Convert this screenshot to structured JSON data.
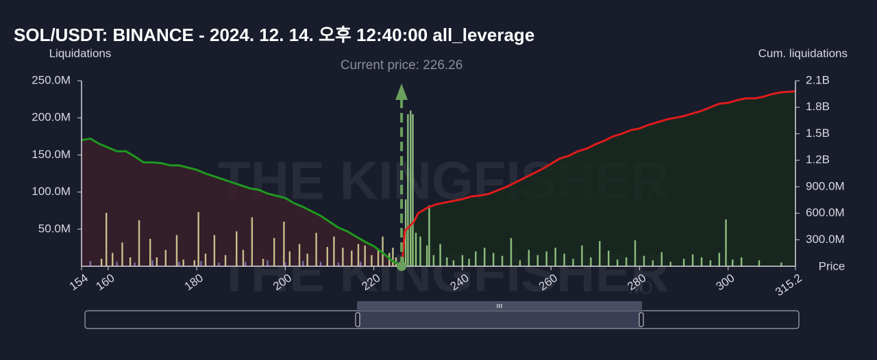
{
  "chart_data": {
    "type": "liquidation-map",
    "title": "SOL/USDT: BINANCE - 2024. 12. 14. 오후 12:40:00 all_leverage",
    "ylabel": "Liquidations",
    "y2label": "Cum. liquidations",
    "xlabel": "Price",
    "annotation": {
      "text": "Current price: 226.26",
      "x": 226.26,
      "color": "#6a9f5c"
    },
    "watermark": {
      "name": "THE KINGFISHER",
      "suffix": ".io"
    },
    "xlim": [
      154,
      315.2
    ],
    "xticks": [
      154,
      160,
      180,
      200,
      220,
      240,
      260,
      280,
      300,
      315.2
    ],
    "ylim": [
      0,
      250000000
    ],
    "yticks": [
      {
        "value": 50000000,
        "label": "50.0M"
      },
      {
        "value": 100000000,
        "label": "100.0M"
      },
      {
        "value": 150000000,
        "label": "150.0M"
      },
      {
        "value": 200000000,
        "label": "200.0M"
      },
      {
        "value": 250000000,
        "label": "250.0M"
      }
    ],
    "y2lim": [
      0,
      2100000000
    ],
    "y2ticks": [
      {
        "value": 300000000,
        "label": "300.0M"
      },
      {
        "value": 600000000,
        "label": "600.0M"
      },
      {
        "value": 900000000,
        "label": "900.0M"
      },
      {
        "value": 1200000000,
        "label": "1.2B"
      },
      {
        "value": 1500000000,
        "label": "1.5B"
      },
      {
        "value": 1800000000,
        "label": "1.8B"
      },
      {
        "value": 2100000000,
        "label": "2.1B"
      }
    ],
    "series": [
      {
        "type": "bar",
        "color": "#e3dc9c",
        "x": [
          158.5,
          159.6,
          161,
          163.2,
          165,
          167,
          169.5,
          171,
          173,
          175.5,
          177,
          179.5,
          180.4,
          182,
          184,
          186.5,
          189,
          190.5,
          192.5,
          195,
          197.5,
          199.7,
          201,
          203.2,
          205,
          207,
          209.5,
          211,
          213,
          215,
          216.5,
          218,
          219.5,
          221,
          222,
          223.5,
          224.3,
          225
        ],
        "values": [
          10000000.0,
          72000000.0,
          18000000.0,
          32000000.0,
          12000000.0,
          62000000.0,
          37000000.0,
          12000000.0,
          22000000.0,
          42000000.0,
          9000000.0,
          8000000.0,
          73000000.0,
          17000000.0,
          42000000.0,
          15000000.0,
          47000000.0,
          22000000.0,
          66000000.0,
          10000000.0,
          38000000.0,
          60000000.0,
          20000000.0,
          30000000.0,
          17000000.0,
          45000000.0,
          26000000.0,
          40000000.0,
          25000000.0,
          21000000.0,
          30000000.0,
          28000000.0,
          15000000.0,
          23000000.0,
          40000000.0,
          18000000.0,
          25000000.0,
          12000000.0
        ]
      },
      {
        "type": "bar",
        "color": "#7f82c8",
        "x": [
          156,
          162,
          166,
          170,
          176,
          181,
          185,
          191,
          196,
          200,
          204,
          208,
          212,
          217
        ],
        "values": [
          7000000.0,
          6000000.0,
          5000000.0,
          8000000.0,
          6000000.0,
          7000000.0,
          5000000.0,
          6000000.0,
          8000000.0,
          5000000.0,
          7000000.0,
          6000000.0,
          5000000.0,
          6000000.0
        ]
      },
      {
        "type": "bar",
        "color": "#a3d98c",
        "x": [
          226.6,
          227.2,
          227.7,
          228.3,
          228.8,
          229.5,
          230.5,
          232,
          232.5,
          233.5,
          235,
          236.5,
          238,
          240,
          241.5,
          243,
          245,
          247,
          249,
          251,
          253,
          255,
          257,
          259,
          261,
          263,
          265,
          267,
          269,
          271,
          273,
          275,
          277,
          279,
          281,
          283,
          285,
          287,
          290,
          292,
          294,
          296,
          298,
          299.5,
          301,
          303,
          307,
          312
        ],
        "values": [
          30000000.0,
          90000000.0,
          205000000.0,
          210000000.0,
          205000000.0,
          45000000.0,
          40000000.0,
          28000000.0,
          82000000.0,
          15000000.0,
          30000000.0,
          12000000.0,
          8000000.0,
          15000000.0,
          10000000.0,
          20000000.0,
          25000000.0,
          18000000.0,
          14000000.0,
          38000000.0,
          8000000.0,
          22000000.0,
          15000000.0,
          20000000.0,
          25000000.0,
          17000000.0,
          10000000.0,
          28000000.0,
          12000000.0,
          34000000.0,
          21000000.0,
          9000000.0,
          12000000.0,
          35000000.0,
          14000000.0,
          8000000.0,
          19000000.0,
          6000000.0,
          10000000.0,
          16000000.0,
          12000000.0,
          8000000.0,
          18000000.0,
          63000000.0,
          9000000.0,
          12000000.0,
          8000000.0,
          5000000.0
        ]
      },
      {
        "type": "line",
        "color": "#1f9a1f",
        "area_color": "#3a1f2a",
        "x": [
          154,
          156,
          158,
          160,
          162,
          164,
          166,
          168,
          170,
          172,
          174,
          176,
          178,
          180,
          182,
          184,
          186,
          188,
          190,
          192,
          194,
          196,
          198,
          200,
          202,
          204,
          206,
          208,
          210,
          212,
          214,
          216,
          218,
          220,
          222,
          224,
          226.26
        ],
        "values": [
          170000000.0,
          172000000.0,
          165000000.0,
          160000000.0,
          155000000.0,
          155000000.0,
          148000000.0,
          140000000.0,
          140000000.0,
          139000000.0,
          136000000.0,
          136000000.0,
          133000000.0,
          130000000.0,
          125000000.0,
          121000000.0,
          117000000.0,
          113000000.0,
          109000000.0,
          105000000.0,
          103000000.0,
          98000000.0,
          95000000.0,
          92000000.0,
          85000000.0,
          80000000.0,
          74000000.0,
          68000000.0,
          60000000.0,
          52000000.0,
          47000000.0,
          40000000.0,
          33000000.0,
          27000000.0,
          18000000.0,
          8000000.0,
          0
        ]
      },
      {
        "type": "line",
        "axis": "y2",
        "color": "#e01b1b",
        "area_color": "#17291f",
        "x": [
          226.5,
          227,
          228,
          229,
          230,
          232,
          234,
          236,
          238,
          240,
          242,
          244,
          246,
          248,
          250,
          252,
          254,
          256,
          258,
          260,
          262,
          264,
          266,
          268,
          270,
          272,
          274,
          276,
          278,
          280,
          282,
          284,
          286,
          288,
          290,
          292,
          294,
          296,
          298,
          300,
          302,
          304,
          306,
          308,
          310,
          312,
          315.2
        ],
        "values": [
          100000000.0,
          400000000.0,
          450000000.0,
          500000000.0,
          600000000.0,
          660000000.0,
          700000000.0,
          720000000.0,
          740000000.0,
          760000000.0,
          790000000.0,
          800000000.0,
          820000000.0,
          860000000.0,
          900000000.0,
          950000000.0,
          1000000000.0,
          1050000000.0,
          1100000000.0,
          1160000000.0,
          1220000000.0,
          1250000000.0,
          1300000000.0,
          1330000000.0,
          1380000000.0,
          1420000000.0,
          1470000000.0,
          1500000000.0,
          1540000000.0,
          1560000000.0,
          1600000000.0,
          1630000000.0,
          1660000000.0,
          1680000000.0,
          1700000000.0,
          1730000000.0,
          1760000000.0,
          1800000000.0,
          1840000000.0,
          1850000000.0,
          1880000000.0,
          1900000000.0,
          1900000000.0,
          1920000000.0,
          1950000000.0,
          1970000000.0,
          1980000000.0
        ]
      }
    ]
  }
}
